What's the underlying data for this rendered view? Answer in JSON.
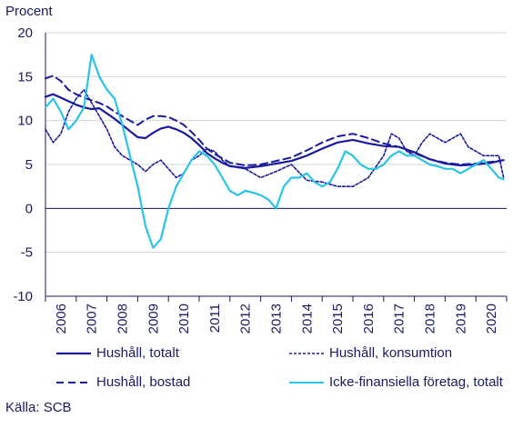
{
  "chart_data": {
    "type": "line",
    "ylabel": "Procent",
    "ylim": [
      -10,
      20
    ],
    "yticks": [
      20,
      15,
      10,
      5,
      0,
      -5,
      -10
    ],
    "xlim": [
      2006.0,
      2021.0
    ],
    "xticks": [
      "2006",
      "2007",
      "2008",
      "2009",
      "2010",
      "2011",
      "2012",
      "2013",
      "2014",
      "2015",
      "2016",
      "2017",
      "2018",
      "2019",
      "2020"
    ],
    "grid": "horizontal",
    "legend_position": "bottom",
    "source": "Källa: SCB",
    "series": [
      {
        "name": "Hushåll, totalt",
        "color": "#1a1aa0",
        "style": "solid",
        "x": [
          2006.0,
          2006.25,
          2006.5,
          2006.75,
          2007.0,
          2007.25,
          2007.5,
          2007.75,
          2008.0,
          2008.25,
          2008.5,
          2008.75,
          2009.0,
          2009.25,
          2009.5,
          2009.75,
          2010.0,
          2010.25,
          2010.5,
          2010.75,
          2011.0,
          2011.25,
          2011.5,
          2011.75,
          2012.0,
          2012.5,
          2013.0,
          2013.5,
          2014.0,
          2014.5,
          2015.0,
          2015.5,
          2016.0,
          2016.5,
          2017.0,
          2017.5,
          2018.0,
          2018.5,
          2019.0,
          2019.5,
          2020.0,
          2020.5,
          2020.9
        ],
        "y": [
          12.7,
          13.0,
          12.6,
          12.2,
          11.8,
          11.5,
          11.3,
          11.4,
          10.8,
          10.2,
          9.5,
          8.8,
          8.1,
          8.0,
          8.6,
          9.1,
          9.3,
          9.0,
          8.6,
          8.0,
          7.2,
          6.3,
          5.7,
          5.2,
          4.8,
          4.6,
          4.8,
          5.1,
          5.4,
          6.0,
          6.8,
          7.5,
          7.8,
          7.4,
          7.1,
          7.0,
          6.4,
          5.6,
          5.1,
          4.9,
          5.0,
          5.2,
          5.5
        ]
      },
      {
        "name": "Hushåll, konsumtion",
        "color": "#1a1aa0",
        "style": "dotted",
        "x": [
          2006.0,
          2006.25,
          2006.5,
          2006.75,
          2007.0,
          2007.25,
          2007.5,
          2007.75,
          2008.0,
          2008.25,
          2008.5,
          2008.75,
          2009.0,
          2009.25,
          2009.5,
          2009.75,
          2010.0,
          2010.25,
          2010.5,
          2010.75,
          2011.0,
          2011.25,
          2011.5,
          2011.75,
          2012.0,
          2012.5,
          2013.0,
          2013.5,
          2014.0,
          2014.5,
          2015.0,
          2015.5,
          2016.0,
          2016.5,
          2017.0,
          2017.25,
          2017.5,
          2017.75,
          2018.0,
          2018.25,
          2018.5,
          2018.75,
          2019.0,
          2019.25,
          2019.5,
          2019.75,
          2020.0,
          2020.25,
          2020.5,
          2020.75,
          2020.9
        ],
        "y": [
          9.0,
          7.5,
          8.5,
          11.0,
          12.5,
          13.5,
          12.0,
          10.5,
          9.0,
          7.0,
          6.0,
          5.5,
          5.0,
          4.2,
          5.0,
          5.5,
          4.5,
          3.5,
          4.0,
          5.5,
          6.0,
          6.8,
          6.5,
          5.5,
          4.8,
          4.5,
          3.5,
          4.2,
          5.0,
          3.2,
          3.0,
          2.5,
          2.5,
          3.5,
          6.0,
          8.5,
          8.0,
          6.5,
          6.0,
          7.5,
          8.5,
          8.0,
          7.5,
          8.0,
          8.5,
          7.0,
          6.5,
          6.0,
          6.0,
          6.0,
          3.5
        ]
      },
      {
        "name": "Hushåll, bostad",
        "color": "#1a1aa0",
        "style": "dashed",
        "x": [
          2006.0,
          2006.25,
          2006.5,
          2006.75,
          2007.0,
          2007.25,
          2007.5,
          2007.75,
          2008.0,
          2008.25,
          2008.5,
          2008.75,
          2009.0,
          2009.25,
          2009.5,
          2009.75,
          2010.0,
          2010.25,
          2010.5,
          2010.75,
          2011.0,
          2011.25,
          2011.5,
          2011.75,
          2012.0,
          2012.5,
          2013.0,
          2013.5,
          2014.0,
          2014.5,
          2015.0,
          2015.5,
          2016.0,
          2016.5,
          2017.0,
          2017.5,
          2018.0,
          2018.5,
          2019.0,
          2019.5,
          2020.0,
          2020.5,
          2020.9
        ],
        "y": [
          14.8,
          15.1,
          14.5,
          13.5,
          13.0,
          12.6,
          12.3,
          12.0,
          11.6,
          11.0,
          10.5,
          10.0,
          9.5,
          10.1,
          10.5,
          10.5,
          10.4,
          10.0,
          9.5,
          8.7,
          7.8,
          6.8,
          6.2,
          5.7,
          5.2,
          4.9,
          5.0,
          5.4,
          5.8,
          6.6,
          7.5,
          8.2,
          8.5,
          8.0,
          7.4,
          7.0,
          6.3,
          5.6,
          5.2,
          5.0,
          5.1,
          5.3,
          5.5
        ]
      },
      {
        "name": "Icke-finansiella företag, totalt",
        "color": "#27c3e8",
        "style": "solid",
        "x": [
          2006.0,
          2006.25,
          2006.5,
          2006.75,
          2007.0,
          2007.25,
          2007.5,
          2007.75,
          2008.0,
          2008.25,
          2008.5,
          2008.75,
          2009.0,
          2009.25,
          2009.5,
          2009.75,
          2010.0,
          2010.25,
          2010.5,
          2010.75,
          2011.0,
          2011.25,
          2011.5,
          2011.75,
          2012.0,
          2012.25,
          2012.5,
          2012.75,
          2013.0,
          2013.25,
          2013.5,
          2013.75,
          2014.0,
          2014.25,
          2014.5,
          2014.75,
          2015.0,
          2015.25,
          2015.5,
          2015.75,
          2016.0,
          2016.25,
          2016.5,
          2016.75,
          2017.0,
          2017.25,
          2017.5,
          2017.75,
          2018.0,
          2018.25,
          2018.5,
          2018.75,
          2019.0,
          2019.25,
          2019.5,
          2019.75,
          2020.0,
          2020.25,
          2020.5,
          2020.75,
          2020.9
        ],
        "y": [
          11.5,
          12.5,
          11.0,
          9.0,
          10.0,
          11.5,
          17.5,
          15.0,
          13.5,
          12.5,
          9.5,
          6.0,
          2.5,
          -2.0,
          -4.5,
          -3.5,
          0.0,
          2.5,
          4.0,
          5.5,
          6.5,
          6.0,
          5.0,
          3.5,
          2.0,
          1.5,
          2.0,
          1.8,
          1.5,
          1.0,
          0.0,
          2.5,
          3.5,
          3.5,
          4.0,
          3.0,
          2.5,
          3.0,
          4.5,
          6.5,
          6.0,
          5.0,
          4.5,
          4.5,
          5.0,
          6.0,
          6.5,
          6.0,
          6.0,
          5.5,
          5.0,
          4.8,
          4.5,
          4.5,
          4.0,
          4.5,
          5.0,
          5.5,
          4.5,
          3.5,
          3.3
        ]
      }
    ]
  }
}
